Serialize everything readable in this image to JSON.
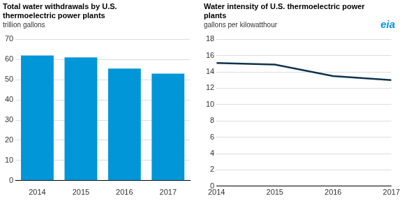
{
  "logo": "eia",
  "chart_data": [
    {
      "type": "bar",
      "title": [
        "Total water withdrawals by U.S.",
        "thermoelectric power plants"
      ],
      "subtitle": "trillion gallons",
      "categories": [
        "2014",
        "2015",
        "2016",
        "2017"
      ],
      "values": [
        62,
        61,
        55.5,
        53
      ],
      "color": "#0096d7",
      "ylim": [
        0,
        70
      ],
      "yticks": [
        0,
        10,
        20,
        30,
        40,
        50,
        60,
        70
      ],
      "grid": true
    },
    {
      "type": "line",
      "title": [
        "Water intensity of U.S. thermoelectric power",
        "plants"
      ],
      "subtitle": "gallons per kilowatthour",
      "x": [
        2014,
        2015,
        2016,
        2017
      ],
      "values": [
        15.1,
        14.9,
        13.5,
        13.0
      ],
      "color": "#10334f",
      "xlim": [
        2014,
        2017
      ],
      "xticks": [
        2014,
        2015,
        2016,
        2017
      ],
      "ylim": [
        0,
        18
      ],
      "yticks": [
        0,
        2,
        4,
        6,
        8,
        10,
        12,
        14,
        16,
        18
      ],
      "grid": true
    }
  ]
}
